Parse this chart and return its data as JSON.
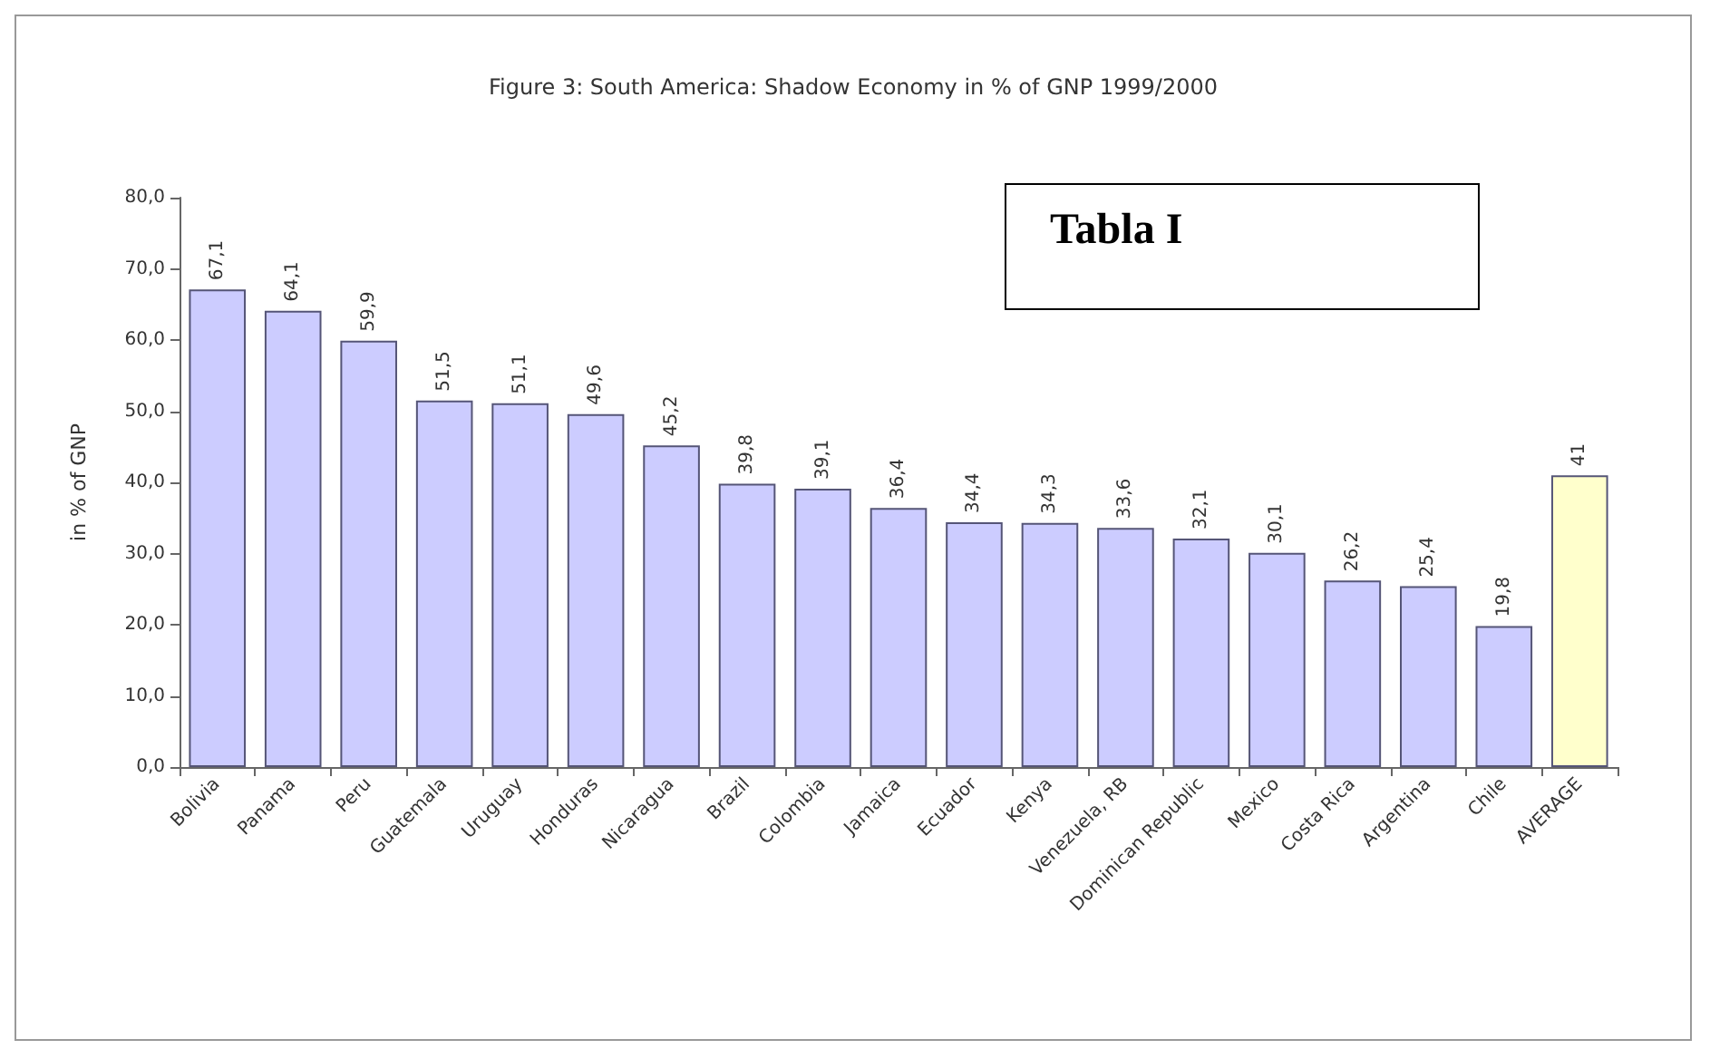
{
  "chart_data": {
    "type": "bar",
    "title": "Figure 3: South America: Shadow Economy in % of GNP 1999/2000",
    "ylabel": "in % of GNP",
    "categories": [
      "Bolivia",
      "Panama",
      "Peru",
      "Guatemala",
      "Uruguay",
      "Honduras",
      "Nicaragua",
      "Brazil",
      "Colombia",
      "Jamaica",
      "Ecuador",
      "Kenya",
      "Venezuela, RB",
      "Dominican Republic",
      "Mexico",
      "Costa Rica",
      "Argentina",
      "Chile",
      "AVERAGE"
    ],
    "values": [
      67.1,
      64.1,
      59.9,
      51.5,
      51.1,
      49.6,
      45.2,
      39.8,
      39.1,
      36.4,
      34.4,
      34.3,
      33.6,
      32.1,
      30.1,
      26.2,
      25.4,
      19.8,
      41
    ],
    "colors": [
      "#ccccff",
      "#ccccff",
      "#ccccff",
      "#ccccff",
      "#ccccff",
      "#ccccff",
      "#ccccff",
      "#ccccff",
      "#ccccff",
      "#ccccff",
      "#ccccff",
      "#ccccff",
      "#ccccff",
      "#ccccff",
      "#ccccff",
      "#ccccff",
      "#ccccff",
      "#ccccff",
      "#ffffcc"
    ],
    "value_labels": [
      "67,1",
      "64,1",
      "59,9",
      "51,5",
      "51,1",
      "49,6",
      "45,2",
      "39,8",
      "39,1",
      "36,4",
      "34,4",
      "34,3",
      "33,6",
      "32,1",
      "30,1",
      "26,2",
      "25,4",
      "19,8",
      "41"
    ],
    "ylim": [
      0,
      80
    ],
    "yticks": [
      {
        "value": 0,
        "label": "0,0"
      },
      {
        "value": 10,
        "label": "10,0"
      },
      {
        "value": 20,
        "label": "20,0"
      },
      {
        "value": 30,
        "label": "30,0"
      },
      {
        "value": 40,
        "label": "40,0"
      },
      {
        "value": 50,
        "label": "50,0"
      },
      {
        "value": 60,
        "label": "60,0"
      },
      {
        "value": 70,
        "label": "70,0"
      },
      {
        "value": 80,
        "label": "80,0"
      }
    ],
    "grid": false,
    "annotations": [
      "Tabla I"
    ]
  }
}
